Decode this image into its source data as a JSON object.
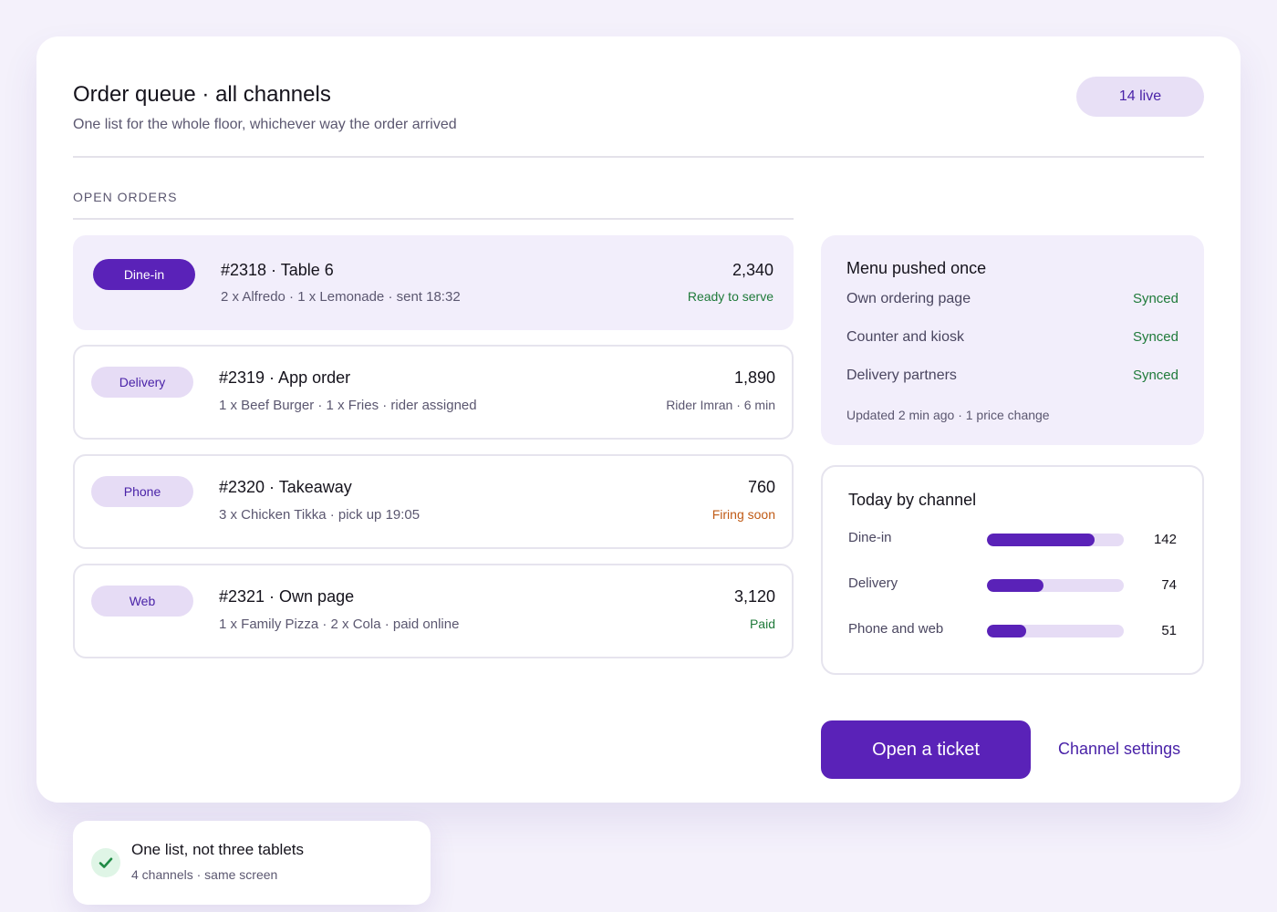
{
  "header": {
    "title": "Order queue · all channels",
    "subtitle": "One list for the whole floor, whichever way the order arrived",
    "live_count": "14 live"
  },
  "orders_section": {
    "label": "OPEN ORDERS",
    "orders": [
      {
        "channel": "Dine-in",
        "name": "#2318 · Table 6",
        "items": "2 x Alfredo · 1 x Lemonade · sent 18:32",
        "amount": "2,340",
        "status": "Ready to serve",
        "status_color": "#1f7a3a",
        "active": true
      },
      {
        "channel": "Delivery",
        "name": "#2319 · App order",
        "items": "1 x Beef Burger · 1 x Fries · rider assigned",
        "amount": "1,890",
        "status": "Rider Imran · 6 min",
        "status_color": "#5b5770",
        "active": false
      },
      {
        "channel": "Phone",
        "name": "#2320 · Takeaway",
        "items": "3 x Chicken Tikka · pick up 19:05",
        "amount": "760",
        "status": "Firing soon",
        "status_color": "#c05a15",
        "active": false
      },
      {
        "channel": "Web",
        "name": "#2321 · Own page",
        "items": "1 x Family Pizza · 2 x Cola · paid online",
        "amount": "3,120",
        "status": "Paid",
        "status_color": "#1f7a3a",
        "active": false
      }
    ]
  },
  "menu_sync": {
    "title": "Menu pushed once",
    "rows": [
      {
        "label": "Own ordering page",
        "value": "Synced"
      },
      {
        "label": "Counter and kiosk",
        "value": "Synced"
      },
      {
        "label": "Delivery partners",
        "value": "Synced"
      }
    ],
    "note": "Updated 2 min ago · 1 price change"
  },
  "today_by_channel": {
    "title": "Today by channel",
    "max": 180,
    "rows": [
      {
        "label": "Dine-in",
        "value": 142
      },
      {
        "label": "Delivery",
        "value": 74
      },
      {
        "label": "Phone and web",
        "value": 51
      }
    ]
  },
  "actions": {
    "primary": "Open a ticket",
    "secondary": "Channel settings"
  },
  "toast": {
    "title": "One list, not three tablets",
    "subtitle": "4 channels · same screen"
  },
  "colors": {
    "accent": "#5a22b8",
    "success": "#1f7a3a",
    "warning": "#c05a15"
  },
  "icons": {
    "toast": "check-icon"
  }
}
